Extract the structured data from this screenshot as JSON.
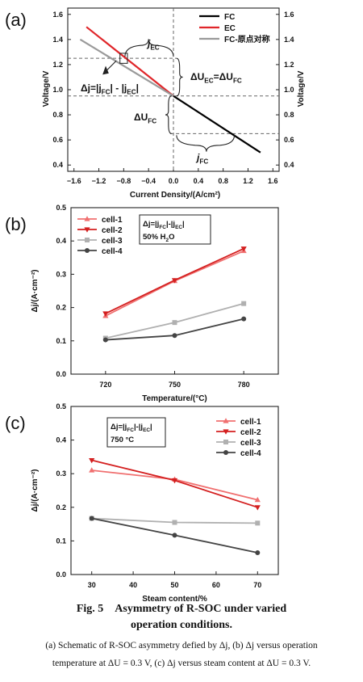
{
  "chart_data": [
    {
      "type": "line",
      "panel_label": "(a)",
      "xlabel": "Current Density/(A/cm²)",
      "ylabel": "Voltage/V",
      "ylabel_right": "Voltage/V",
      "xlim": [
        -1.7,
        1.7
      ],
      "ylim": [
        0.35,
        1.65
      ],
      "xticks": [
        "−1.6",
        "−1.2",
        "−0.8",
        "−0.4",
        "0.0",
        "0.4",
        "0.8",
        "1.2",
        "1.6"
      ],
      "xtick_values": [
        -1.6,
        -1.2,
        -0.8,
        -0.4,
        0.0,
        0.4,
        0.8,
        1.2,
        1.6
      ],
      "yticks": [
        "0.4",
        "0.6",
        "0.8",
        "1.0",
        "1.2",
        "1.4",
        "1.6"
      ],
      "ytick_values": [
        0.4,
        0.6,
        0.8,
        1.0,
        1.2,
        1.4,
        1.6
      ],
      "series": [
        {
          "name": "FC",
          "color": "#000000",
          "x": [
            0.0,
            1.4
          ],
          "y": [
            0.95,
            0.5
          ]
        },
        {
          "name": "EC",
          "color": "#e0262a",
          "x": [
            -1.4,
            0.0
          ],
          "y": [
            1.5,
            0.95
          ]
        },
        {
          "name": "FC-原点对称",
          "color": "#9a9a9a",
          "x": [
            -1.5,
            0.0
          ],
          "y": [
            1.4,
            0.95
          ]
        }
      ],
      "annotations": {
        "j_ec": "j",
        "j_ec_sub": "EC",
        "j_fc": "j",
        "j_fc_sub": "FC",
        "delta_u_fc": "ΔU",
        "delta_u_fc_sub": "FC",
        "du_eq_a": "ΔU",
        "du_eq_a_sub": "EC",
        "du_eq_b": "=ΔU",
        "du_eq_b_sub": "FC",
        "dj_a": "Δj=|j",
        "dj_a_sub": "FC",
        "dj_b": "| - |j",
        "dj_b_sub": "EC",
        "dj_c": "|"
      }
    },
    {
      "type": "line",
      "panel_label": "(b)",
      "xlabel": "Temperature/(°C)",
      "ylabel": "Δj/(A·cm⁻²)",
      "categories": [
        "720",
        "750",
        "780"
      ],
      "ylim": [
        0.0,
        0.5
      ],
      "yticks": [
        "0.0",
        "0.1",
        "0.2",
        "0.3",
        "0.4",
        "0.5"
      ],
      "ytick_values": [
        0.0,
        0.1,
        0.2,
        0.3,
        0.4,
        0.5
      ],
      "inset": {
        "line1_a": "Δj=|j",
        "line1_sub1": "FC",
        "line1_b": "|-|j",
        "line1_sub2": "EC",
        "line1_c": "|",
        "line2_a": "50% H",
        "line2_sub": "2",
        "line2_b": "O"
      },
      "series": [
        {
          "name": "cell-1",
          "color": "#f07070",
          "marker": "triangle-up",
          "values": [
            0.175,
            0.28,
            0.37
          ]
        },
        {
          "name": "cell-2",
          "color": "#d42020",
          "marker": "triangle-down",
          "values": [
            0.182,
            0.282,
            0.377
          ]
        },
        {
          "name": "cell-3",
          "color": "#b0b0b0",
          "marker": "square",
          "values": [
            0.108,
            0.155,
            0.212
          ]
        },
        {
          "name": "cell-4",
          "color": "#444444",
          "marker": "circle",
          "values": [
            0.103,
            0.116,
            0.166
          ]
        }
      ]
    },
    {
      "type": "line",
      "panel_label": "(c)",
      "xlabel": "Steam content/%",
      "ylabel": "Δj/(A·cm⁻²)",
      "xlim": [
        25,
        75
      ],
      "ylim": [
        0.0,
        0.5
      ],
      "xticks": [
        "30",
        "40",
        "50",
        "60",
        "70"
      ],
      "xtick_values": [
        30,
        40,
        50,
        60,
        70
      ],
      "yticks": [
        "0.0",
        "0.1",
        "0.2",
        "0.3",
        "0.4",
        "0.5"
      ],
      "ytick_values": [
        0.0,
        0.1,
        0.2,
        0.3,
        0.4,
        0.5
      ],
      "inset": {
        "line1_a": "Δj=|j",
        "line1_sub1": "FC",
        "line1_b": "|-|j",
        "line1_sub2": "EC",
        "line1_c": "|",
        "line2_a": "750 °C"
      },
      "series": [
        {
          "name": "cell-1",
          "color": "#f07070",
          "marker": "triangle-up",
          "x": [
            30,
            50,
            70
          ],
          "values": [
            0.31,
            0.283,
            0.222
          ]
        },
        {
          "name": "cell-2",
          "color": "#d42020",
          "marker": "triangle-down",
          "x": [
            30,
            50,
            70
          ],
          "values": [
            0.34,
            0.28,
            0.2
          ]
        },
        {
          "name": "cell-3",
          "color": "#b0b0b0",
          "marker": "square",
          "x": [
            30,
            50,
            70
          ],
          "values": [
            0.167,
            0.155,
            0.153
          ]
        },
        {
          "name": "cell-4",
          "color": "#444444",
          "marker": "circle",
          "x": [
            30,
            50,
            70
          ],
          "values": [
            0.167,
            0.117,
            0.065
          ]
        }
      ]
    }
  ],
  "caption": {
    "title_line1": "Fig. 5 Asymmetry of R-SOC under varied",
    "title_line2": "operation conditions.",
    "body_line1": "(a) Schematic of R-SOC asymmetry defied by Δj, (b) Δj versus operation",
    "body_line2": "temperature at ΔU = 0.3 V, (c) Δj versus steam content at ΔU = 0.3 V."
  }
}
